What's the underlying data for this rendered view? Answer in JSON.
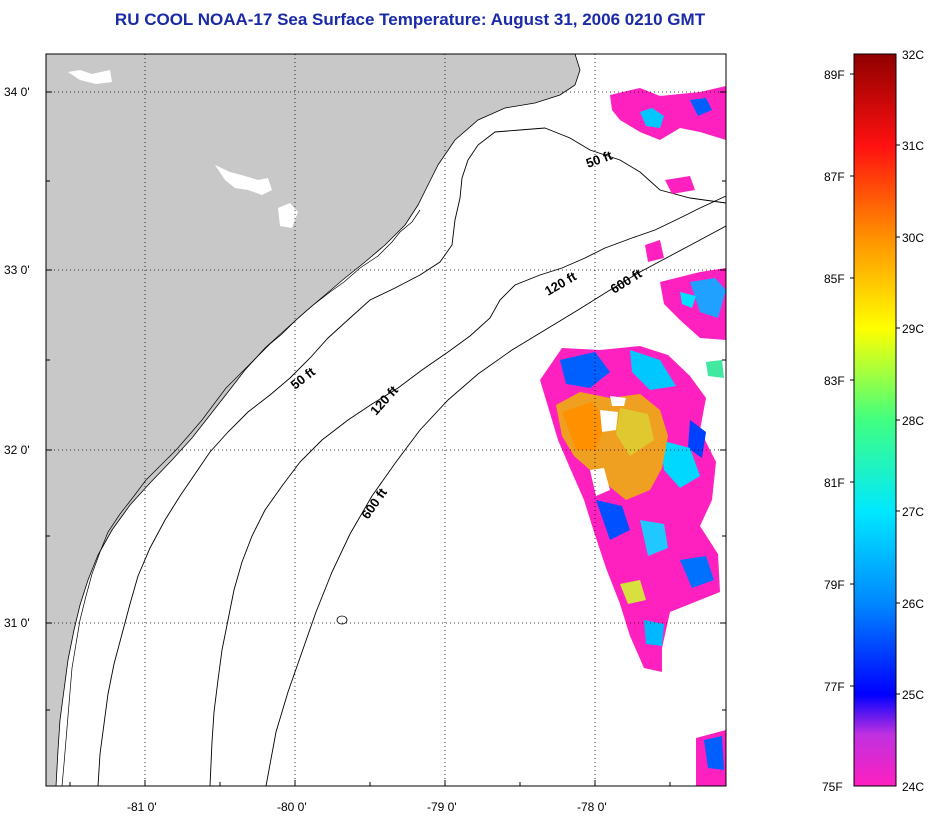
{
  "title": "RU COOL  NOAA-17  Sea Surface Temperature:  August 31, 2006 0210 GMT",
  "lat_labels": [
    "34 0'",
    "33 0'",
    "32 0'",
    "31 0'"
  ],
  "lon_labels": [
    "-81 0'",
    "-80 0'",
    "-79 0'",
    "-78 0'"
  ],
  "contours": {
    "c50a": "50 ft",
    "c120a": "120 ft",
    "c600a": "600 ft",
    "c50b": "50 ft",
    "c120b": "120 ft",
    "c600b": "600 ft"
  },
  "colorbar": {
    "celsius": [
      "32C",
      "31C",
      "30C",
      "29C",
      "28C",
      "27C",
      "26C",
      "25C",
      "24C"
    ],
    "fahrenheit": [
      "89F",
      "87F",
      "85F",
      "83F",
      "81F",
      "79F",
      "77F",
      "75F"
    ]
  },
  "colors": {
    "land": "#c8c8c8",
    "title": "#1a2aa8"
  }
}
